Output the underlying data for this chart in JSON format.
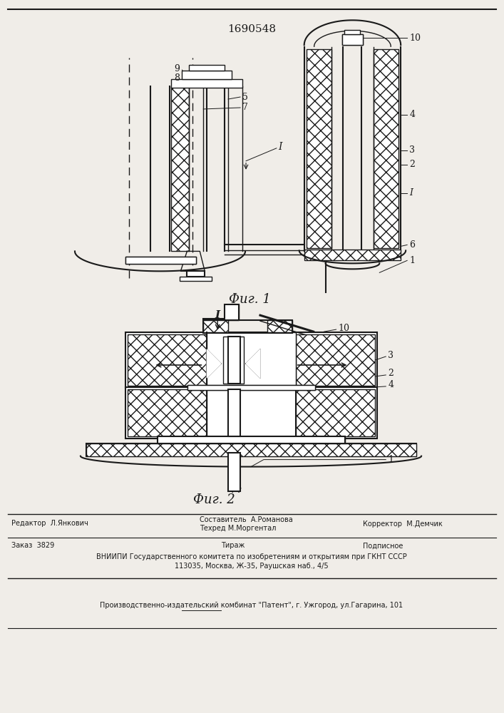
{
  "patent_number": "1690548",
  "bg": "#f0ede8",
  "lc": "#1a1a1a",
  "fig1_caption": "Фиг. 1",
  "fig2_caption": "Фиг. 2",
  "footer_editor": "Редактор  Л.Янкович",
  "footer_comp_top": "Составитель  А.Романова",
  "footer_comp_bot": "Техред М.Моргентал",
  "footer_corr": "Корректор  М.Демчик",
  "footer_order": "Заказ  3829",
  "footer_tirazh": "Тираж",
  "footer_podp": "Подписное",
  "footer_vniip1": "ВНИИПИ Государственного комитета по изобретениям и открытиям при ГКНТ СССР",
  "footer_vniip2": "113035, Москва, Ж-35, Раушская наб., 4/5",
  "footer_prod": "Производственно-издательский комбинат \"Патент\", г. Ужгород, ул.Гагарина, 101"
}
